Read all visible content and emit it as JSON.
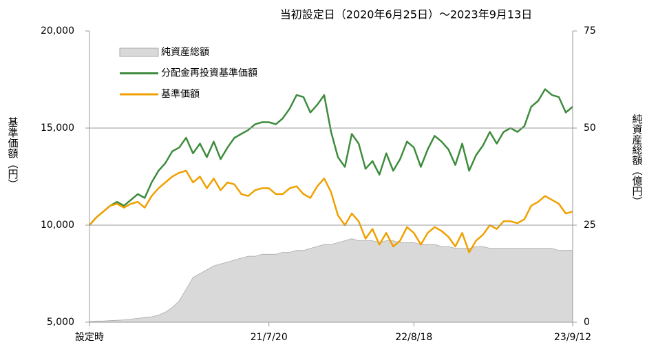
{
  "chart_data": {
    "type": "line",
    "title": "当初設定日（2020年6月25日）～2023年9月13日",
    "y_label": "基準価額（円）",
    "y2_label": "純資産総額（億円）",
    "categories": [
      "設定時",
      null,
      null,
      null,
      null,
      null,
      null,
      null,
      null,
      null,
      null,
      null,
      null,
      null,
      null,
      null,
      null,
      null,
      null,
      null,
      null,
      null,
      null,
      null,
      null,
      null,
      "21/7/20",
      null,
      null,
      null,
      null,
      null,
      null,
      null,
      null,
      null,
      null,
      null,
      null,
      null,
      null,
      null,
      null,
      null,
      null,
      null,
      null,
      "22/8/18",
      null,
      null,
      null,
      null,
      null,
      null,
      null,
      null,
      null,
      null,
      null,
      null,
      null,
      null,
      null,
      null,
      null,
      null,
      null,
      null,
      null,
      null,
      "23/9/12"
    ],
    "series": [
      {
        "name": "純資産総額",
        "type": "area",
        "axis": "y2",
        "color": "#d9d9d9",
        "values": [
          0.2,
          0.3,
          0.3,
          0.4,
          0.5,
          0.6,
          0.8,
          1.0,
          1.2,
          1.4,
          1.8,
          2.6,
          3.8,
          5.5,
          8.5,
          11.5,
          12.5,
          13.5,
          14.5,
          15,
          15.5,
          16,
          16.5,
          17,
          17,
          17.5,
          17.5,
          17.5,
          18,
          18,
          18.5,
          18.5,
          19,
          19.5,
          20,
          20,
          20.5,
          21,
          21.5,
          21,
          21,
          21,
          20.5,
          21,
          21,
          20.5,
          20.5,
          20.5,
          20,
          20,
          20,
          19.5,
          19.5,
          19,
          19,
          19,
          19.5,
          19.5,
          19,
          19,
          19,
          19,
          19,
          19,
          19,
          19,
          19,
          19,
          18.5,
          18.5,
          18.5
        ]
      },
      {
        "name": "分配金再投資基準価額",
        "type": "line",
        "color": "#3d8b3d",
        "values": [
          10000,
          10400,
          10700,
          11000,
          11200,
          11000,
          11300,
          11600,
          11400,
          12200,
          12800,
          13200,
          13800,
          14000,
          14500,
          13700,
          14200,
          13500,
          14300,
          13400,
          14000,
          14500,
          14700,
          14900,
          15200,
          15300,
          15300,
          15200,
          15500,
          16000,
          16700,
          16600,
          15800,
          16200,
          16700,
          14800,
          13500,
          13000,
          14700,
          14200,
          12900,
          13300,
          12600,
          13700,
          12800,
          13400,
          14300,
          14000,
          13000,
          13900,
          14600,
          14300,
          13900,
          13100,
          14200,
          12800,
          13600,
          14100,
          14800,
          14200,
          14800,
          15000,
          14800,
          15100,
          16100,
          16400,
          17000,
          16700,
          16600,
          15800,
          16100
        ]
      },
      {
        "name": "基準価額",
        "type": "line",
        "color": "#f0a000",
        "values": [
          10000,
          10400,
          10700,
          11000,
          11100,
          10900,
          11100,
          11200,
          10900,
          11500,
          11900,
          12200,
          12500,
          12700,
          12800,
          12200,
          12500,
          11900,
          12400,
          11800,
          12200,
          12100,
          11600,
          11500,
          11800,
          11900,
          11900,
          11600,
          11600,
          11900,
          12000,
          11600,
          11400,
          12000,
          12400,
          11700,
          10500,
          10000,
          10600,
          10200,
          9300,
          9800,
          9000,
          9600,
          8900,
          9200,
          9900,
          9600,
          9000,
          9600,
          9900,
          9700,
          9400,
          8900,
          9600,
          8600,
          9200,
          9500,
          10000,
          9800,
          10200,
          10200,
          10100,
          10300,
          11000,
          11200,
          11500,
          11300,
          11100,
          10600,
          10700
        ]
      }
    ],
    "ylim": [
      5000,
      20000
    ],
    "yticks": [
      {
        "value": 5000,
        "label": "5,000"
      },
      {
        "value": 10000,
        "label": "10,000"
      },
      {
        "value": 15000,
        "label": "15,000"
      },
      {
        "value": 20000,
        "label": "20,000"
      }
    ],
    "y2lim": [
      0,
      75
    ],
    "y2ticks": [
      0,
      25,
      50,
      75
    ],
    "grid": true
  }
}
